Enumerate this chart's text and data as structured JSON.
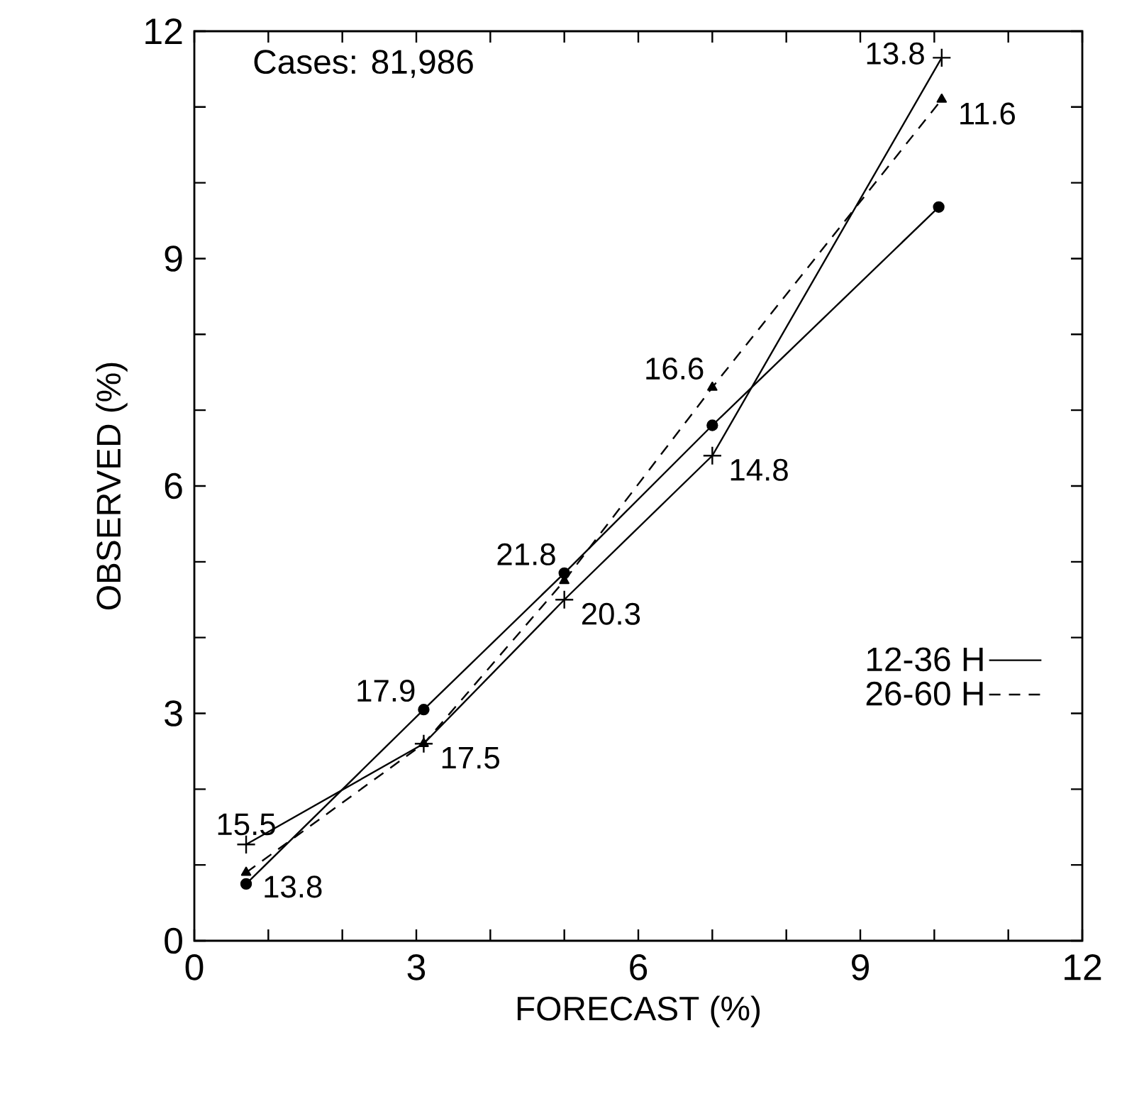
{
  "chart_data": {
    "type": "line",
    "xlabel": "FORECAST (%)",
    "ylabel": "OBSERVED (%)",
    "xlim": [
      0,
      12
    ],
    "ylim": [
      0,
      12
    ],
    "xticks": [
      0,
      {
        "value": 1,
        "label": null
      },
      {
        "value": 2,
        "label": null
      },
      3,
      {
        "value": 4,
        "label": null
      },
      {
        "value": 5,
        "label": null
      },
      6,
      {
        "value": 7,
        "label": null
      },
      {
        "value": 8,
        "label": null
      },
      9,
      {
        "value": 10,
        "label": null
      },
      {
        "value": 11,
        "label": null
      },
      12
    ],
    "yticks": [
      0,
      {
        "value": 1,
        "label": null
      },
      {
        "value": 2,
        "label": null
      },
      3,
      {
        "value": 4,
        "label": null
      },
      {
        "value": 5,
        "label": null
      },
      6,
      {
        "value": 7,
        "label": null
      },
      {
        "value": 8,
        "label": null
      },
      9,
      {
        "value": 10,
        "label": null
      },
      {
        "value": 11,
        "label": null
      },
      12
    ],
    "grid": false,
    "legend": "bottom right",
    "series": [
      {
        "name": "12-36 H",
        "color": "#000000",
        "marker": "cross",
        "line_style": "solid",
        "x": [
          0.7,
          3.1,
          5.0,
          7.0,
          10.1
        ],
        "values": [
          1.27,
          2.6,
          4.5,
          6.4,
          11.65
        ]
      },
      {
        "name": "26-60 H",
        "color": "#000000",
        "marker": "triangle",
        "line_style": "dashed",
        "x": [
          0.7,
          3.1,
          5.0,
          7.0,
          10.1
        ],
        "values": [
          0.9,
          2.6,
          4.75,
          7.3,
          11.1
        ]
      },
      {
        "color": "#000000",
        "marker": "circle",
        "line_style": "solid",
        "x": [
          0.7,
          3.1,
          5.0,
          7.0,
          10.06
        ],
        "values": [
          0.75,
          3.05,
          4.85,
          6.8,
          9.68
        ]
      }
    ],
    "annotations": [
      "Cases: 81,986",
      {
        "text": "15.5",
        "x": 0.7,
        "y": 1.27
      },
      {
        "text": "13.8",
        "x": 0.7,
        "y": 0.9
      },
      {
        "text": "17.9",
        "x": 3.1,
        "y": 3.05
      },
      {
        "text": "17.5",
        "x": 3.1,
        "y": 2.6
      },
      {
        "text": "21.8",
        "x": 5.0,
        "y": 4.85
      },
      {
        "text": "20.3",
        "x": 5.0,
        "y": 4.5
      },
      {
        "text": "16.6",
        "x": 7.0,
        "y": 7.3
      },
      {
        "text": "14.8",
        "x": 7.0,
        "y": 6.4
      },
      {
        "text": "13.8",
        "x": 10.1,
        "y": 11.65
      },
      {
        "text": "11.6",
        "x": 10.1,
        "y": 11.1
      }
    ]
  }
}
